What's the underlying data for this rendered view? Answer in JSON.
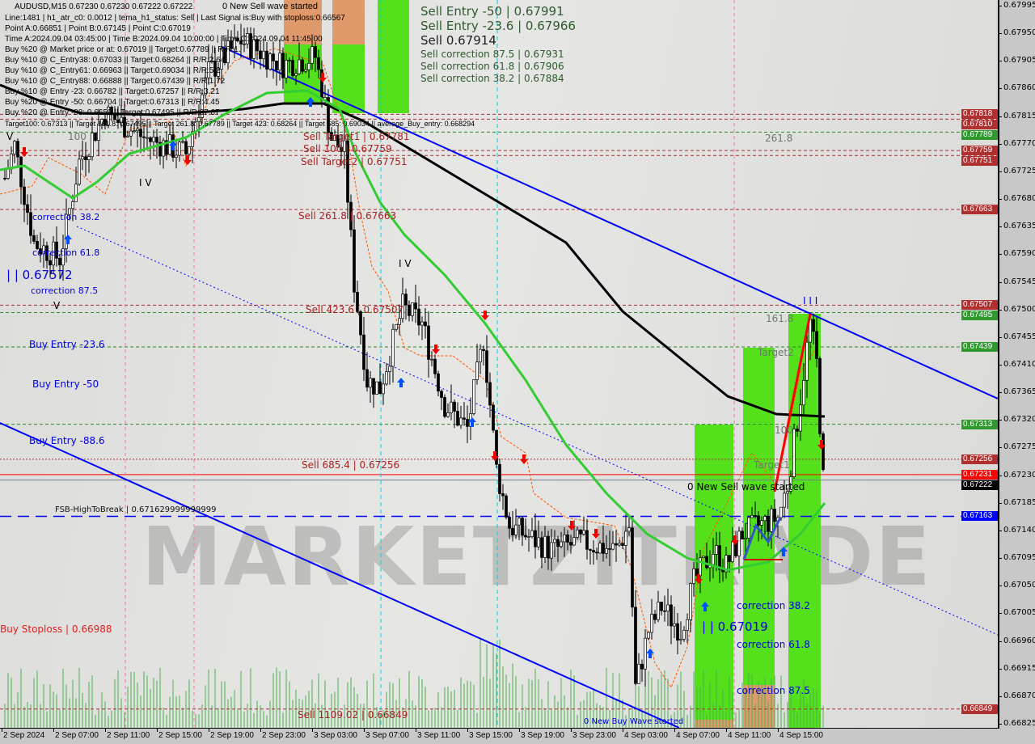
{
  "header": {
    "symbol_line": "AUDUSD,M15  0.67230 0.67230 0.67222 0.67222",
    "wave_notice": "0 New Sell wave started",
    "info_lines": [
      "Line:1481 | h1_atr_c0: 0.0012 | tema_h1_status: Sell | Last Signal is:Buy with stoploss:0.66567",
      "Point A:0.66851 | Point B:0.67145 | Point C:0.67019",
      "Time A:2024.09.04 03:45:00 | Time B:2024.09.04 10:00:00 | Time C:2024.09.04 11:45:00",
      "Buy %20 @ Market price or at: 0.67019 || Target:0.67789 || R/R:1.",
      "Buy %10 @ C_Entry38: 0.67033 || Target:0.68264 || R/R:2.64",
      "Buy %10 @ C_Entry61: 0.66963 || Target:0.69034 || R/R:5.2",
      "Buy %10 @ C_Entry88: 0.66888 || Target:0.67439 || R/R:1.72",
      "Buy %10 @ Entry -23: 0.66782 || Target:0.67257 || R/R:3.21",
      "Buy %20 @ Entry -50: 0.66704 || Target:0.67313 || R/R:4.45",
      "Buy %20 @ Entry -88: 0.6659 || Target:0.67495 || R/R:37.67",
      "Target100: 0.67313 || Target 161.8: 0.67495 || Target 261.8: 0.67789 || Target 423: 0.68264 || Target 685: 0.69034 || average_Buy_entry: 0.668294"
    ]
  },
  "annotations": {
    "sell_entry_50": "Sell Entry -50 | 0.67991",
    "sell_big": "Sell 0.67914",
    "sell_entry_236": "Sell Entry -23.6 | 0.67966",
    "sell_corr_875": "Sell correction 87.5 | 0.67931",
    "sell_corr_618": "Sell correction 61.8 | 0.67906",
    "sell_corr_382": "Sell correction 38.2 | 0.67884",
    "sell_target1": "Sell Target1 | 0.67781",
    "sell_100": "Sell 100 | 0.67759",
    "sell_target2": "Sell Target2 | 0.67751",
    "sell_2618": "Sell 261.8 | 0.67663",
    "sell_4236": "Sell 423.6 | 0.67507",
    "sell_6854": "Sell 685.4 | 0.67256",
    "sell_110902": "Sell 1109.02 | 0.66849",
    "fib_2618": "261.8",
    "fib_1618": "161.8",
    "target2": "Target2",
    "fib_100": "100",
    "target1": "Target1",
    "fib_100_left": "100",
    "new_sell_wave": "0 New Sell wave started",
    "new_buy_wave": "0 New Buy Wave started",
    "fsb": "FSB-HighToBreak | 0.671629999999999",
    "buy_entry_236": "Buy Entry -23.6",
    "buy_entry_50": "Buy Entry -50",
    "buy_entry_886": "Buy Entry -88.6",
    "buy_stoploss": "Buy Stoploss | 0.66988",
    "left_corr_382": "correction 38.2",
    "left_corr_618": "correction 61.8",
    "left_corr_875": "correction 87.5",
    "left_point": "| | 0.67572",
    "right_point": "| | 0.67019",
    "right_corr_382": "correction 38.2",
    "right_corr_618": "correction 61.8",
    "right_corr_875": "correction 87.5",
    "wave_iv_1": "I V",
    "wave_iv_2": "I V",
    "wave_v_1": "V",
    "wave_v_2": "V",
    "wave_iii": "I I I"
  },
  "watermark": "MARKETZITRADE",
  "chart_data": {
    "type": "candlestick",
    "symbol": "AUDUSD",
    "timeframe": "M15",
    "ylim": [
      0.66825,
      0.67995
    ],
    "y_ticks": [
      0.67995,
      0.6795,
      0.67905,
      0.6786,
      0.67815,
      0.6777,
      0.67725,
      0.6768,
      0.67635,
      0.6759,
      0.67545,
      0.675,
      0.67455,
      0.6741,
      0.67365,
      0.6732,
      0.67275,
      0.6723,
      0.67185,
      0.6714,
      0.67095,
      0.6705,
      0.67005,
      0.6696,
      0.66915,
      0.6687,
      0.66825
    ],
    "x_ticks": [
      "2 Sep 2024",
      "2 Sep 07:00",
      "2 Sep 11:00",
      "2 Sep 15:00",
      "2 Sep 19:00",
      "2 Sep 23:00",
      "3 Sep 03:00",
      "3 Sep 07:00",
      "3 Sep 11:00",
      "3 Sep 15:00",
      "3 Sep 19:00",
      "3 Sep 23:00",
      "4 Sep 03:00",
      "4 Sep 07:00",
      "4 Sep 11:00",
      "4 Sep 15:00"
    ],
    "x_tick_times": [
      "2024-09-02T00:00",
      "2024-09-02T04:00",
      "2024-09-02T08:00",
      "2024-09-02T12:00",
      "2024-09-02T16:00",
      "2024-09-02T20:00",
      "2024-09-03T00:00",
      "2024-09-03T04:00",
      "2024-09-03T08:00",
      "2024-09-03T12:00",
      "2024-09-03T16:00",
      "2024-09-03T20:00",
      "2024-09-04T00:00",
      "2024-09-04T04:00",
      "2024-09-04T08:00",
      "2024-09-04T12:00"
    ],
    "price_path": [
      [
        "2024-09-02T00:15",
        0.67714
      ],
      [
        "2024-09-02T01:00",
        0.67767
      ],
      [
        "2024-09-02T02:30",
        0.67609
      ],
      [
        "2024-09-02T04:30",
        0.67583
      ],
      [
        "2024-09-02T06:00",
        0.67741
      ],
      [
        "2024-09-02T08:00",
        0.6782
      ],
      [
        "2024-09-02T11:00",
        0.6778
      ],
      [
        "2024-09-02T14:15",
        0.67754
      ],
      [
        "2024-09-02T16:00",
        0.67886
      ],
      [
        "2024-09-02T18:30",
        0.67938
      ],
      [
        "2024-09-02T21:45",
        0.67899
      ],
      [
        "2024-09-03T00:15",
        0.67912
      ],
      [
        "2024-09-03T01:30",
        0.6778
      ],
      [
        "2024-09-03T02:30",
        0.67754
      ],
      [
        "2024-09-03T03:15",
        0.67543
      ],
      [
        "2024-09-03T04:15",
        0.67385
      ],
      [
        "2024-09-03T05:15",
        0.67372
      ],
      [
        "2024-09-03T07:00",
        0.67504
      ],
      [
        "2024-09-03T08:30",
        0.67477
      ],
      [
        "2024-09-03T10:15",
        0.67345
      ],
      [
        "2024-09-03T12:00",
        0.67306
      ],
      [
        "2024-09-03T13:15",
        0.67451
      ],
      [
        "2024-09-03T14:15",
        0.6724
      ],
      [
        "2024-09-03T15:15",
        0.67148
      ],
      [
        "2024-09-03T18:30",
        0.67108
      ],
      [
        "2024-09-03T20:45",
        0.67121
      ],
      [
        "2024-09-03T23:30",
        0.67108
      ],
      [
        "2024-09-04T00:30",
        0.67148
      ],
      [
        "2024-09-04T01:00",
        0.66884
      ],
      [
        "2024-09-04T02:00",
        0.66977
      ],
      [
        "2024-09-04T03:00",
        0.67016
      ],
      [
        "2024-09-04T04:30",
        0.66977
      ],
      [
        "2024-09-04T05:30",
        0.67056
      ],
      [
        "2024-09-04T07:00",
        0.67108
      ],
      [
        "2024-09-04T08:00",
        0.67082
      ],
      [
        "2024-09-04T09:15",
        0.67135
      ],
      [
        "2024-09-04T10:30",
        0.67148
      ],
      [
        "2024-09-04T12:00",
        0.67161
      ],
      [
        "2024-09-04T12:45",
        0.67214
      ],
      [
        "2024-09-04T13:30",
        0.67319
      ],
      [
        "2024-09-04T14:30",
        0.67477
      ],
      [
        "2024-09-04T15:00",
        0.67411
      ],
      [
        "2024-09-04T15:30",
        0.67222
      ]
    ],
    "levels": [
      {
        "price": 0.67818,
        "color": "#a83232",
        "style": "dashed"
      },
      {
        "price": 0.6781,
        "color": "#a83232",
        "style": "dashed"
      },
      {
        "price": 0.67789,
        "color": "#2e8b2e",
        "style": "dashed"
      },
      {
        "price": 0.67759,
        "color": "#a83232",
        "style": "dashed"
      },
      {
        "price": 0.67751,
        "color": "#a83232",
        "style": "dashed"
      },
      {
        "price": 0.67663,
        "color": "#a83232",
        "style": "dashed"
      },
      {
        "price": 0.67507,
        "color": "#a83232",
        "style": "dashed"
      },
      {
        "price": 0.67495,
        "color": "#2e8b2e",
        "style": "dashed"
      },
      {
        "price": 0.67439,
        "color": "#2e8b2e",
        "style": "dashed"
      },
      {
        "price": 0.67313,
        "color": "#2e8b2e",
        "style": "dashed"
      },
      {
        "price": 0.67256,
        "color": "#a83232",
        "style": "dotted"
      },
      {
        "price": 0.67231,
        "color": "#ff0000",
        "style": "solid"
      },
      {
        "price": 0.67222,
        "color": "#708090",
        "style": "solid"
      },
      {
        "price": 0.67163,
        "color": "#0000ff",
        "style": "longdash"
      },
      {
        "price": 0.66849,
        "color": "#a83232",
        "style": "dashed"
      }
    ],
    "price_tags": [
      {
        "label": "0.67818",
        "color": "#b03030"
      },
      {
        "label": "0.67810",
        "color": "#b03030"
      },
      {
        "label": "0.67789",
        "color": "#2e9a2e"
      },
      {
        "label": "0.67759",
        "color": "#b03030"
      },
      {
        "label": "0.67751",
        "color": "#b03030"
      },
      {
        "label": "0.67663",
        "color": "#b03030"
      },
      {
        "label": "0.67507",
        "color": "#b03030"
      },
      {
        "label": "0.67495",
        "color": "#2e9a2e"
      },
      {
        "label": "0.67439",
        "color": "#2e9a2e"
      },
      {
        "label": "0.67313",
        "color": "#2e9a2e"
      },
      {
        "label": "0.67256",
        "color": "#b03030"
      },
      {
        "label": "0.67231",
        "color": "#ff0000"
      },
      {
        "label": "0.67222",
        "color": "#000000"
      },
      {
        "label": "0.67163",
        "color": "#0000ff"
      },
      {
        "label": "0.66849",
        "color": "#b03030"
      }
    ],
    "colors": {
      "bull": "#ffffff",
      "bear": "#000000",
      "ma_slow": "#000000",
      "ma_fast": "#33cc33",
      "trend": "#0000ff",
      "zone_green": "#55e01c",
      "zone_orange": "#e0996a",
      "volume": "#4caf50"
    }
  }
}
